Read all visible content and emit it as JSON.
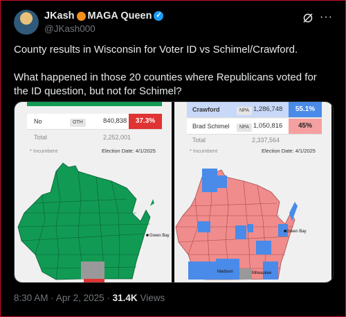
{
  "author": {
    "name": "JKash",
    "name_suffix": "MAGA Queen",
    "handle": "@JKash000"
  },
  "icons": {
    "grok": "grok-icon",
    "more": "more-dots-icon",
    "verified": "verified-badge-icon"
  },
  "colors": {
    "accent": "#1d9bf0",
    "green_county": "#119a54",
    "red_county": "#f08c8c",
    "blue_county": "#4a8ae8",
    "no_red": "#e03333"
  },
  "tweet": {
    "line1": "County results in Wisconsin for Voter ID vs Schimel/Crawford.",
    "line2": "What happened in those 20 counties where Republicans voted for the ID question, but not for Schimel?"
  },
  "left_panel": {
    "row": {
      "candidate": "No",
      "party": "OTH",
      "votes": "840,838",
      "percent": "37.3%"
    },
    "total_label": "Total",
    "total_votes": "2,252,001",
    "incumbent_note": "* Incumbent",
    "election_date": "Election Date: 4/1/2025",
    "map_label_city": "Green Bay"
  },
  "right_panel": {
    "rows": [
      {
        "candidate": "Crawford",
        "party": "NPA",
        "votes": "1,286,748",
        "percent": "55.1%"
      },
      {
        "candidate": "Brad Schimel",
        "party": "NPA",
        "votes": "1,050,816",
        "percent": "45%"
      }
    ],
    "total_label": "Total",
    "total_votes": "2,337,564",
    "incumbent_note": "* Incumbent",
    "election_date": "Election Date: 4/1/2025",
    "map_labels": {
      "green_bay": "Green Bay",
      "madison": "Madison",
      "milwaukee": "Milwaukee"
    }
  },
  "meta": {
    "time": "8:30 AM",
    "sep": "·",
    "date": "Apr 2, 2025",
    "views_count": "31.4K",
    "views_label": "Views"
  }
}
